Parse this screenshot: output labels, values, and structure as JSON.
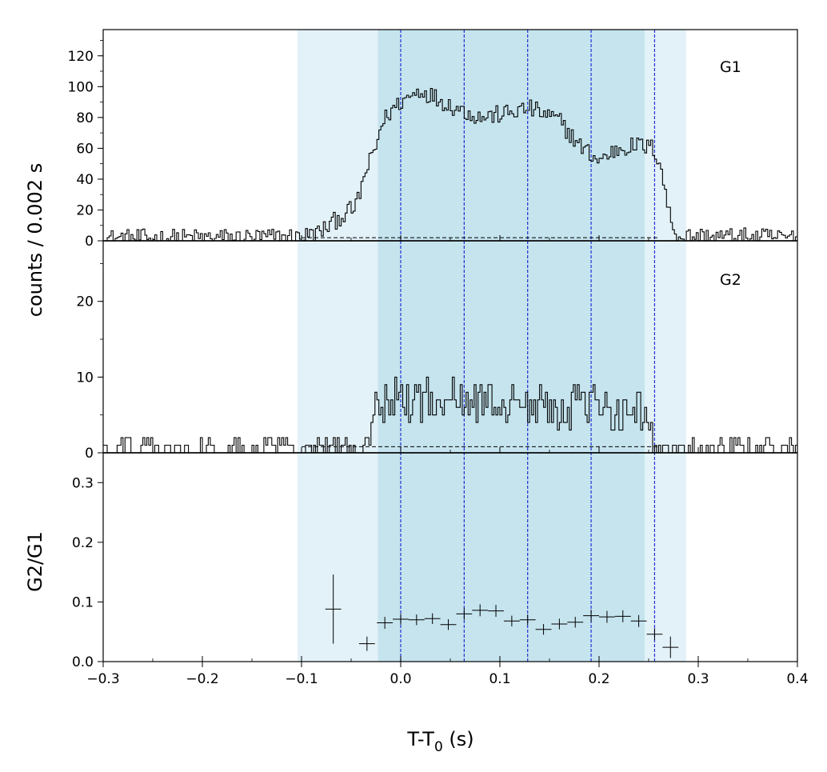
{
  "chart_data": {
    "type": "line",
    "description_shared_x": "T-T0 (s)",
    "xlabel_main": "T-T",
    "xlabel_sub": "0",
    "xlabel_unit": " (s)",
    "ylabel_shared": "counts /  0.002 s",
    "xlim": [
      -0.3,
      0.4
    ],
    "x_ticks": [
      -0.3,
      -0.2,
      -0.1,
      0.0,
      0.1,
      0.2,
      0.3,
      0.4
    ],
    "x_tick_labels": [
      "−0.3",
      "−0.2",
      "−0.1",
      "0.0",
      "0.1",
      "0.2",
      "0.3",
      "0.4"
    ],
    "shaded_regions": [
      {
        "x0": -0.104,
        "x1": 0.288,
        "color": "#e3f2f8"
      },
      {
        "x0": -0.023,
        "x1": 0.246,
        "color": "#c5e4ee"
      }
    ],
    "vertical_lines": [
      0.0,
      0.064,
      0.128,
      0.192,
      0.256
    ],
    "vertical_line_color": "#1f2fd6",
    "panels": [
      {
        "label": "G1",
        "ylim": [
          0,
          137
        ],
        "y_ticks": [
          0,
          20,
          40,
          60,
          80,
          100,
          120
        ],
        "y_tick_labels": [
          "0",
          "20",
          "40",
          "60",
          "80",
          "100",
          "120"
        ],
        "background_level": 2,
        "light_curve_knots": [
          [
            -0.3,
            1.5
          ],
          [
            -0.1,
            2.5
          ],
          [
            -0.08,
            6
          ],
          [
            -0.062,
            15
          ],
          [
            -0.045,
            22
          ],
          [
            -0.035,
            45
          ],
          [
            -0.025,
            60
          ],
          [
            -0.02,
            75
          ],
          [
            -0.01,
            84
          ],
          [
            0.0,
            90
          ],
          [
            0.02,
            98
          ],
          [
            0.05,
            88
          ],
          [
            0.08,
            80
          ],
          [
            0.11,
            83
          ],
          [
            0.13,
            86
          ],
          [
            0.16,
            78
          ],
          [
            0.18,
            62
          ],
          [
            0.2,
            52
          ],
          [
            0.22,
            60
          ],
          [
            0.24,
            62
          ],
          [
            0.255,
            60
          ],
          [
            0.262,
            50
          ],
          [
            0.27,
            20
          ],
          [
            0.275,
            8
          ],
          [
            0.28,
            3
          ],
          [
            0.4,
            2
          ]
        ],
        "light_curve_noise": 6
      },
      {
        "label": "G2",
        "ylim": [
          0,
          28
        ],
        "y_ticks": [
          0,
          10,
          20
        ],
        "y_tick_labels": [
          "0",
          "10",
          "20"
        ],
        "background_level": 0.8,
        "light_curve_knots": [
          [
            -0.3,
            0.8
          ],
          [
            -0.03,
            1.0
          ],
          [
            -0.028,
            6.5
          ],
          [
            0.0,
            7
          ],
          [
            0.05,
            7
          ],
          [
            0.1,
            6.5
          ],
          [
            0.2,
            6
          ],
          [
            0.245,
            5.5
          ],
          [
            0.255,
            1.5
          ],
          [
            0.4,
            0.8
          ]
        ],
        "light_curve_noise": 2.8
      }
    ],
    "ratio_panel": {
      "ylabel": "G2/G1",
      "ylim": [
        0,
        0.35
      ],
      "y_ticks": [
        0.0,
        0.1,
        0.2,
        0.3
      ],
      "y_tick_labels": [
        "0.0",
        "0.1",
        "0.2",
        "0.3"
      ],
      "points": [
        {
          "x": -0.068,
          "y": 0.088,
          "xerr": 0.008,
          "yerr": 0.058
        },
        {
          "x": -0.034,
          "y": 0.03,
          "xerr": 0.008,
          "yerr": 0.012
        },
        {
          "x": -0.016,
          "y": 0.065,
          "xerr": 0.008,
          "yerr": 0.01
        },
        {
          "x": 0.0,
          "y": 0.071,
          "xerr": 0.008,
          "yerr": 0.009
        },
        {
          "x": 0.016,
          "y": 0.07,
          "xerr": 0.008,
          "yerr": 0.009
        },
        {
          "x": 0.032,
          "y": 0.072,
          "xerr": 0.008,
          "yerr": 0.009
        },
        {
          "x": 0.048,
          "y": 0.062,
          "xerr": 0.008,
          "yerr": 0.009
        },
        {
          "x": 0.064,
          "y": 0.08,
          "xerr": 0.008,
          "yerr": 0.01
        },
        {
          "x": 0.08,
          "y": 0.086,
          "xerr": 0.008,
          "yerr": 0.01
        },
        {
          "x": 0.096,
          "y": 0.085,
          "xerr": 0.008,
          "yerr": 0.01
        },
        {
          "x": 0.112,
          "y": 0.068,
          "xerr": 0.008,
          "yerr": 0.009
        },
        {
          "x": 0.128,
          "y": 0.07,
          "xerr": 0.008,
          "yerr": 0.009
        },
        {
          "x": 0.144,
          "y": 0.054,
          "xerr": 0.008,
          "yerr": 0.009
        },
        {
          "x": 0.16,
          "y": 0.063,
          "xerr": 0.008,
          "yerr": 0.009
        },
        {
          "x": 0.176,
          "y": 0.066,
          "xerr": 0.008,
          "yerr": 0.009
        },
        {
          "x": 0.192,
          "y": 0.077,
          "xerr": 0.008,
          "yerr": 0.01
        },
        {
          "x": 0.208,
          "y": 0.075,
          "xerr": 0.008,
          "yerr": 0.01
        },
        {
          "x": 0.224,
          "y": 0.076,
          "xerr": 0.008,
          "yerr": 0.01
        },
        {
          "x": 0.24,
          "y": 0.068,
          "xerr": 0.008,
          "yerr": 0.01
        },
        {
          "x": 0.256,
          "y": 0.046,
          "xerr": 0.008,
          "yerr": 0.01
        },
        {
          "x": 0.272,
          "y": 0.024,
          "xerr": 0.008,
          "yerr": 0.018
        }
      ]
    },
    "grid": false,
    "legend": "none"
  }
}
